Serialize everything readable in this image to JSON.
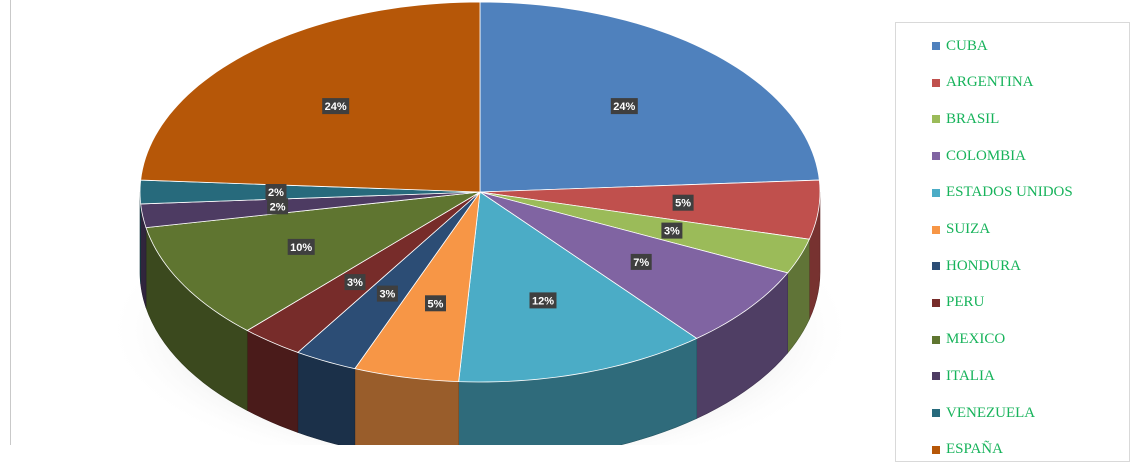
{
  "chart_data": {
    "type": "pie",
    "title": "",
    "legend_position": "right",
    "data_labels_visible": true,
    "series": [
      {
        "name": "CUBA",
        "label": "24%",
        "value": 24,
        "color": "#4f81bd"
      },
      {
        "name": "ARGENTINA",
        "label": "5%",
        "value": 5,
        "color": "#c0504d"
      },
      {
        "name": "BRASIL",
        "label": "3%",
        "value": 3,
        "color": "#9bbb59"
      },
      {
        "name": "COLOMBIA",
        "label": "7%",
        "value": 7,
        "color": "#8064a2"
      },
      {
        "name": "ESTADOS UNIDOS",
        "label": "12%",
        "value": 12,
        "color": "#4bacc6"
      },
      {
        "name": "SUIZA",
        "label": "5%",
        "value": 5,
        "color": "#f79646"
      },
      {
        "name": "HONDURA",
        "label": "3%",
        "value": 3,
        "color": "#2c4d75"
      },
      {
        "name": "PERU",
        "label": "3%",
        "value": 3,
        "color": "#772c2a"
      },
      {
        "name": "MEXICO",
        "label": "10%",
        "value": 10,
        "color": "#5f7530"
      },
      {
        "name": "ITALIA",
        "label": "2%",
        "value": 2,
        "color": "#4d3b62"
      },
      {
        "name": "VENEZUELA",
        "label": "2%",
        "value": 2,
        "color": "#276a7c"
      },
      {
        "name": "ESPAÑA",
        "label": "24%",
        "value": 24,
        "color": "#b65708"
      }
    ]
  },
  "legend": {
    "text_color": "#17b35b"
  }
}
